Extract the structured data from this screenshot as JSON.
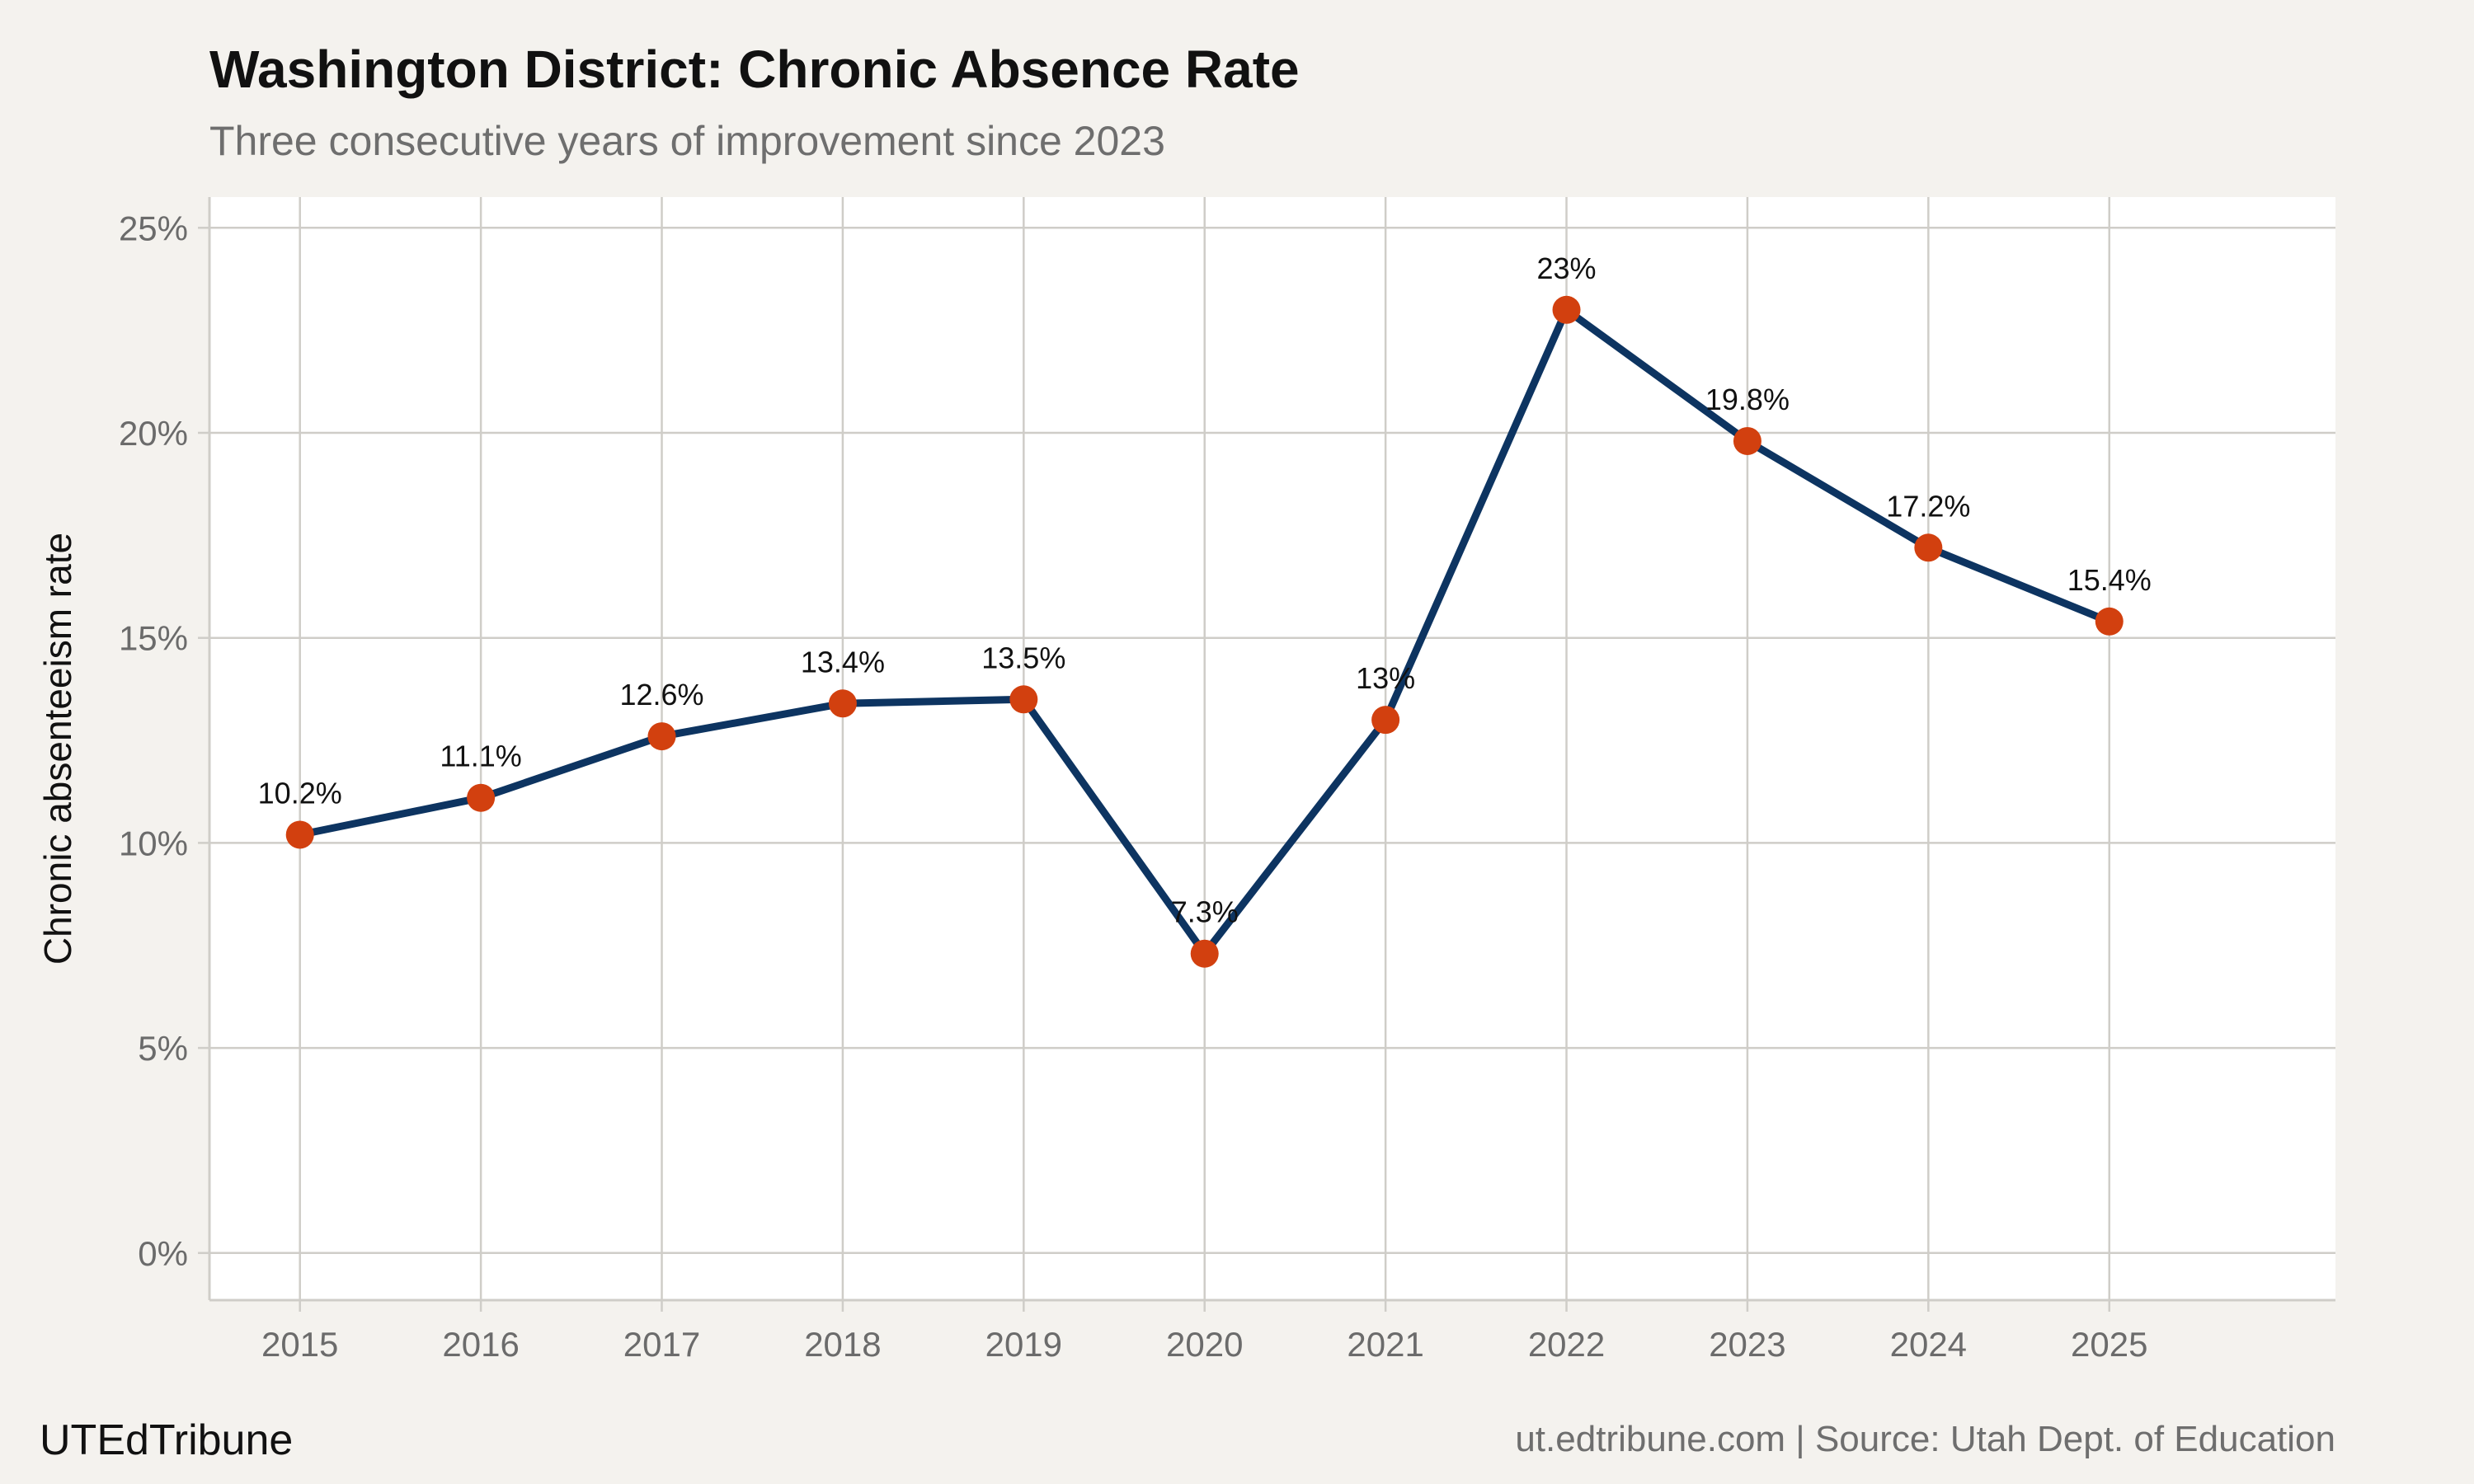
{
  "chart_data": {
    "type": "line",
    "title": "Washington District: Chronic Absence Rate",
    "subtitle": "Three consecutive years of improvement since 2023",
    "xlabel": "",
    "ylabel": "Chronic absenteeism rate",
    "x": [
      2015,
      2016,
      2017,
      2018,
      2019,
      2020,
      2021,
      2022,
      2023,
      2024,
      2025
    ],
    "x_tick_labels": [
      "2015",
      "2016",
      "2017",
      "2018",
      "2019",
      "2020",
      "2021",
      "2022",
      "2023",
      "2024",
      "2025"
    ],
    "series": [
      {
        "values": [
          10.2,
          11.1,
          12.6,
          13.4,
          13.5,
          7.3,
          13.0,
          23.0,
          19.8,
          17.2,
          15.4
        ],
        "data_labels": [
          "10.2%",
          "11.1%",
          "12.6%",
          "13.4%",
          "13.5%",
          "7.3%",
          "13%",
          "23%",
          "19.8%",
          "17.2%",
          "15.4%"
        ]
      }
    ],
    "y_ticks": [
      0,
      5,
      10,
      15,
      20,
      25
    ],
    "y_tick_labels": [
      "0%",
      "5%",
      "10%",
      "15%",
      "20%",
      "25%"
    ],
    "xlim": [
      2014.5,
      2026.25
    ],
    "ylim": [
      -1.15,
      25.75
    ],
    "grid": true,
    "legend": "none",
    "colors": {
      "line": "#0d3461",
      "point": "#d2400f",
      "background": "#f4f2ee",
      "panel": "#ffffff",
      "grid": "#cfcdc8",
      "axis_text": "#6b6b6b",
      "title": "#111111",
      "subtitle": "#6e6e6e"
    }
  },
  "footer": {
    "brand": "UTEdTribune",
    "source": "ut.edtribune.com | Source: Utah Dept. of Education"
  }
}
